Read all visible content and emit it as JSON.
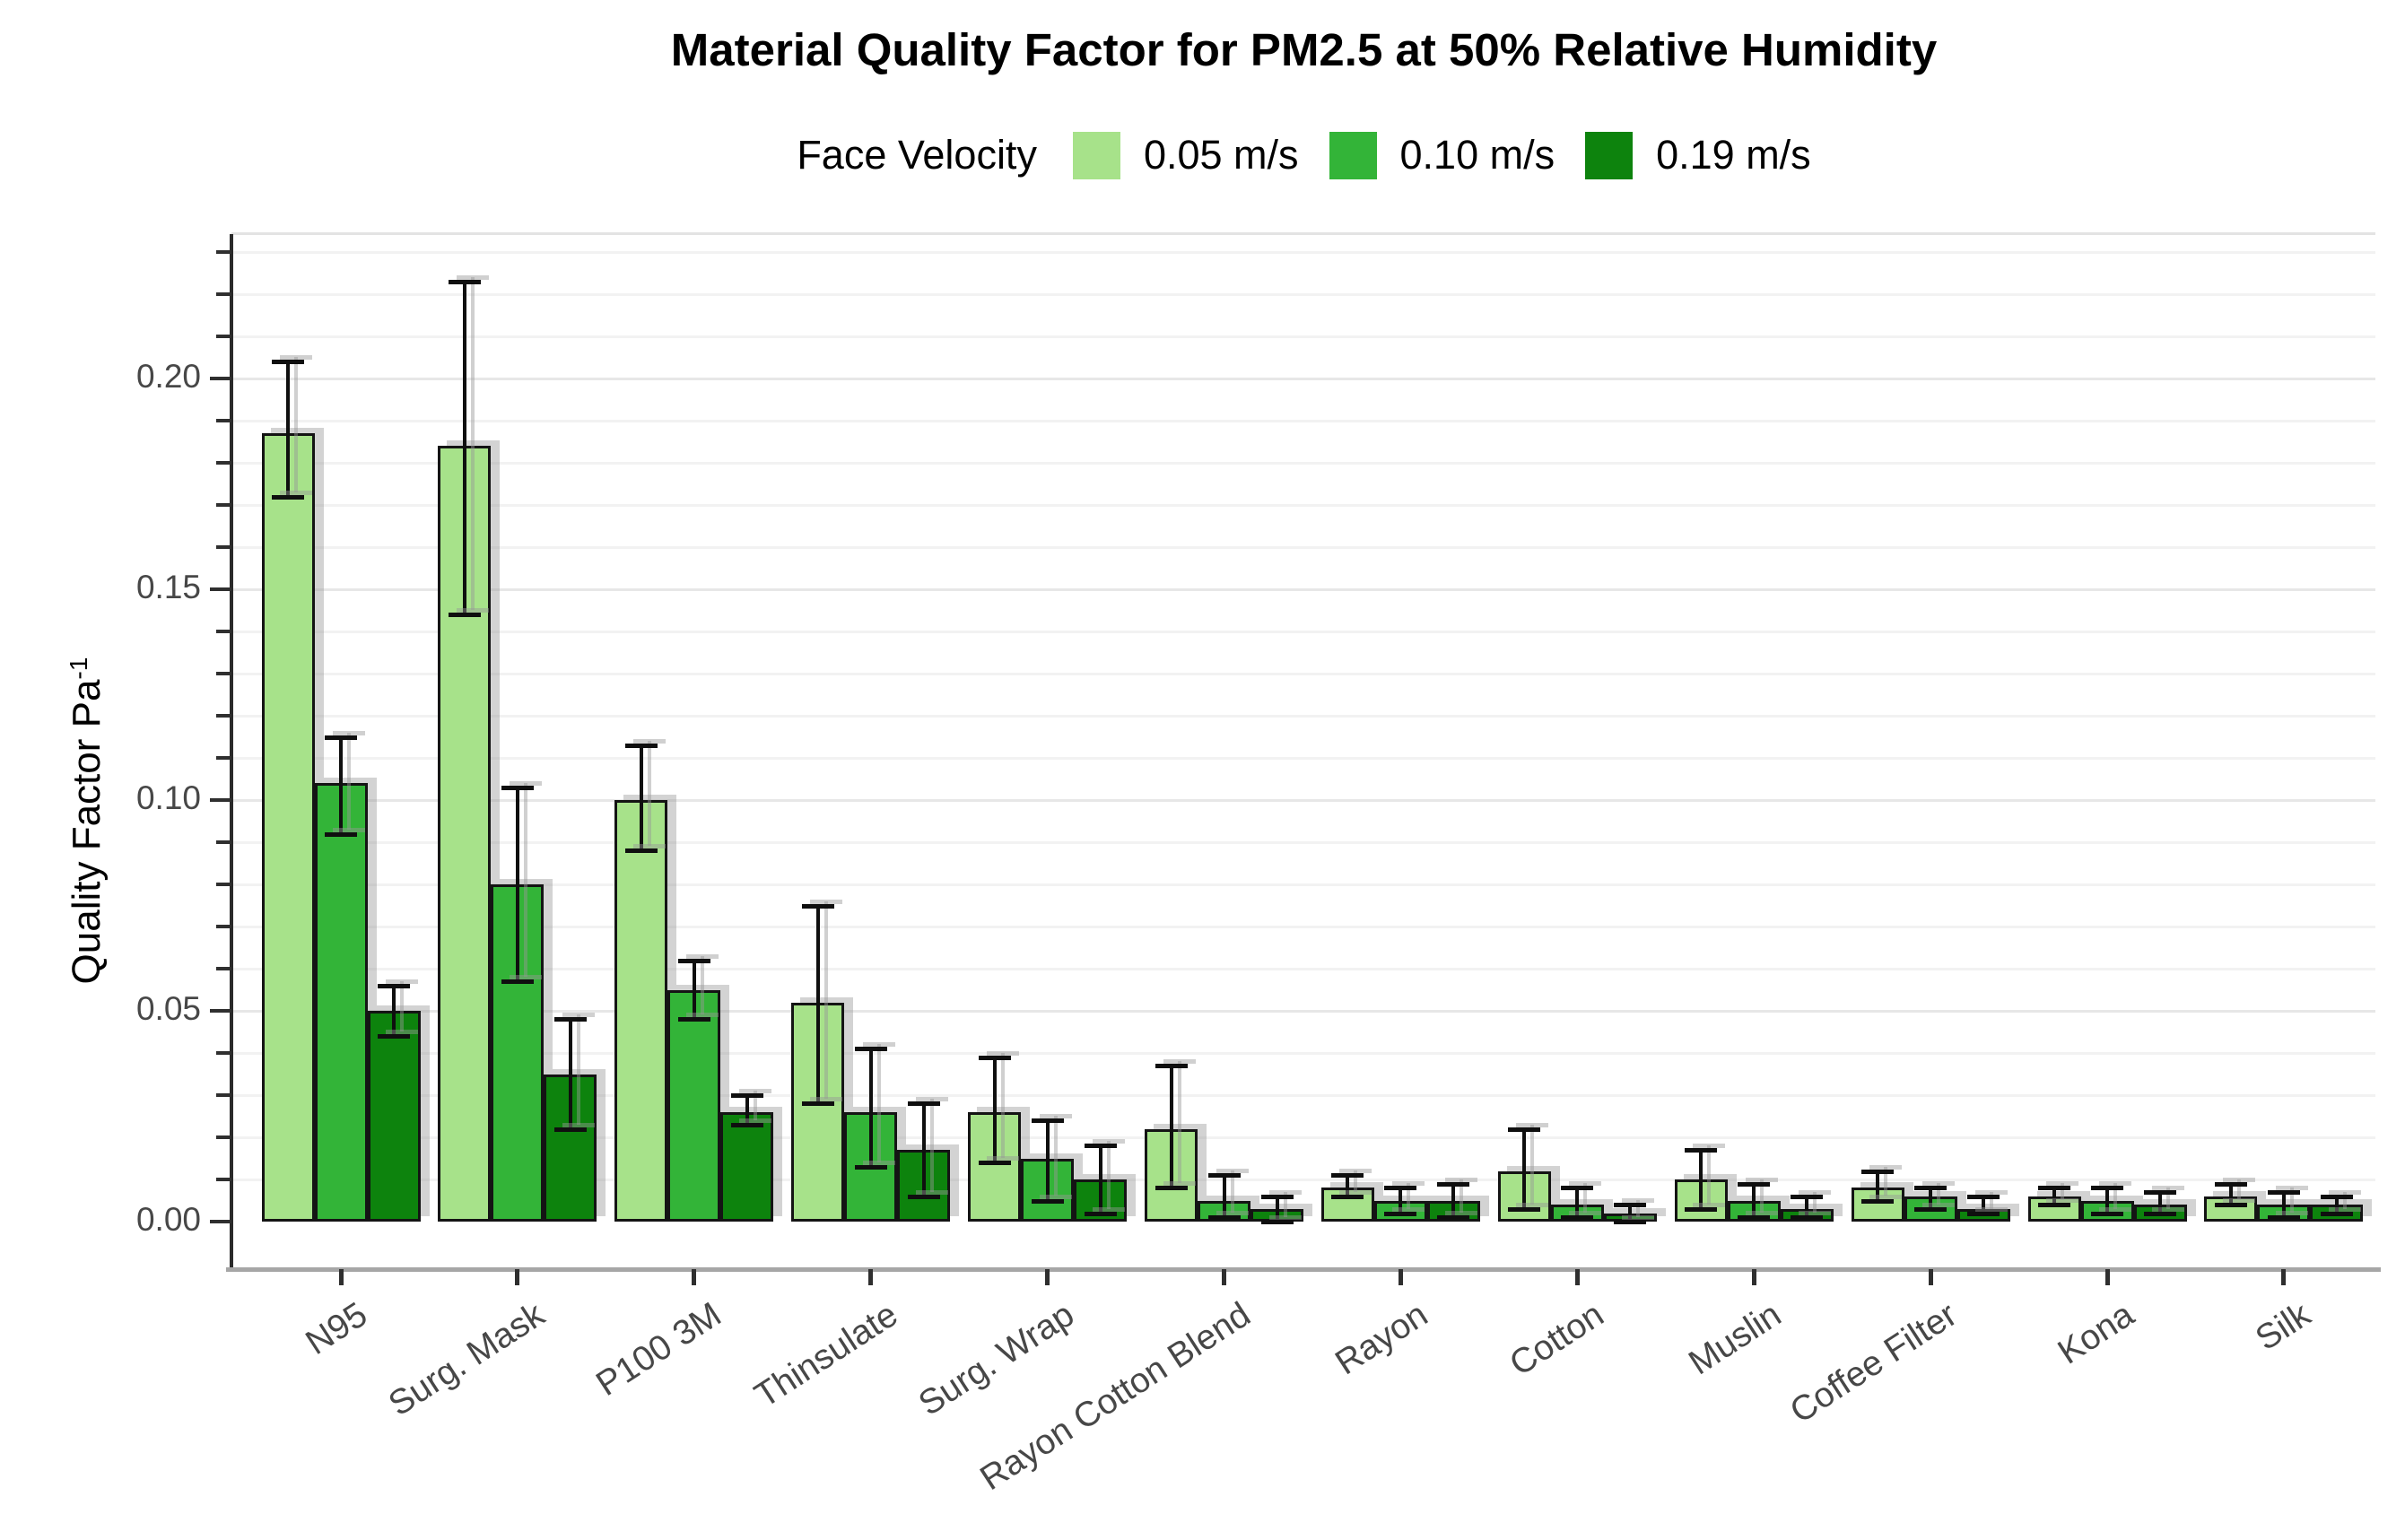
{
  "title": "Material Quality Factor for PM2.5 at 50% Relative Humidity",
  "legend": {
    "title": "Face Velocity",
    "items": [
      {
        "label": "0.05 m/s",
        "color": "#A7E28A"
      },
      {
        "label": "0.10 m/s",
        "color": "#33B438"
      },
      {
        "label": "0.19 m/s",
        "color": "#0D830D"
      }
    ]
  },
  "axes": {
    "y_label": "Quality Factor Pa",
    "y_label_sup": "-1",
    "y_tick_labels": [
      "0.00",
      "0.05",
      "0.10",
      "0.15",
      "0.20"
    ]
  },
  "chart_data": {
    "type": "bar",
    "title": "Material Quality Factor for PM2.5 at 50% Relative Humidity",
    "xlabel": "",
    "ylabel": "Quality Factor Pa^-1",
    "ylim": [
      0,
      0.235
    ],
    "y_major_ticks": [
      0.0,
      0.05,
      0.1,
      0.15,
      0.2
    ],
    "y_minor_step": 0.01,
    "grid": "horizontal, minor every 0.01, major every 0.05",
    "legend_position": "top",
    "legend_title": "Face Velocity",
    "error_bars": true,
    "bar_outline_color": "#141414",
    "categories": [
      "N95",
      "Surg. Mask",
      "P100 3M",
      "Thinsulate",
      "Surg. Wrap",
      "Rayon Cotton Blend",
      "Rayon",
      "Cotton",
      "Muslin",
      "Coffee Filter",
      "Kona",
      "Silk"
    ],
    "series": [
      {
        "name": "0.05 m/s",
        "color": "#A7E28A",
        "values": [
          0.187,
          0.184,
          0.1,
          0.052,
          0.026,
          0.022,
          0.008,
          0.012,
          0.01,
          0.008,
          0.006,
          0.006
        ],
        "ci_low": [
          0.172,
          0.144,
          0.088,
          0.028,
          0.014,
          0.008,
          0.006,
          0.003,
          0.003,
          0.005,
          0.004,
          0.004
        ],
        "ci_high": [
          0.204,
          0.223,
          0.113,
          0.075,
          0.039,
          0.037,
          0.011,
          0.022,
          0.017,
          0.012,
          0.008,
          0.009
        ]
      },
      {
        "name": "0.10 m/s",
        "color": "#33B438",
        "values": [
          0.104,
          0.08,
          0.055,
          0.026,
          0.015,
          0.005,
          0.005,
          0.004,
          0.005,
          0.006,
          0.005,
          0.004
        ],
        "ci_low": [
          0.092,
          0.057,
          0.048,
          0.013,
          0.005,
          0.001,
          0.002,
          0.001,
          0.001,
          0.003,
          0.002,
          0.001
        ],
        "ci_high": [
          0.115,
          0.103,
          0.062,
          0.041,
          0.024,
          0.011,
          0.008,
          0.008,
          0.009,
          0.008,
          0.008,
          0.007
        ]
      },
      {
        "name": "0.19 m/s",
        "color": "#0D830D",
        "values": [
          0.05,
          0.035,
          0.026,
          0.017,
          0.01,
          0.003,
          0.005,
          0.002,
          0.003,
          0.003,
          0.004,
          0.004
        ],
        "ci_low": [
          0.044,
          0.022,
          0.023,
          0.006,
          0.002,
          0.0,
          0.001,
          0.0,
          0.001,
          0.002,
          0.002,
          0.002
        ],
        "ci_high": [
          0.056,
          0.048,
          0.03,
          0.028,
          0.018,
          0.006,
          0.009,
          0.004,
          0.006,
          0.006,
          0.007,
          0.006
        ]
      }
    ]
  }
}
